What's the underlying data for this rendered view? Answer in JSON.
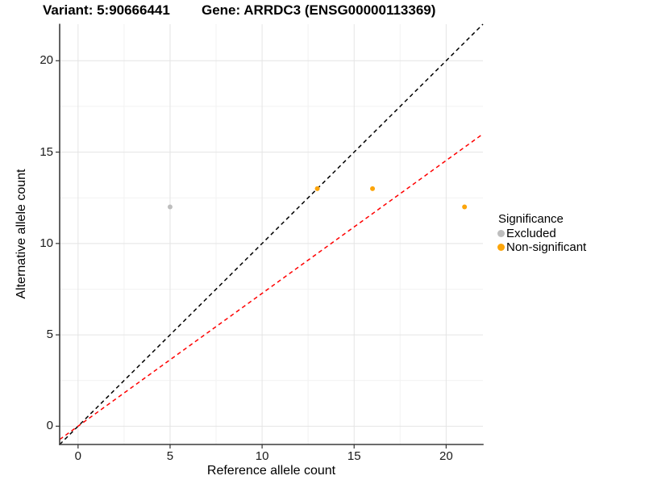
{
  "chart_data": {
    "type": "scatter",
    "titles": {
      "variant": "Variant: 5:90666441",
      "gene": "Gene: ARRDC3 (ENSG00000113369)"
    },
    "xlabel": "Reference allele count",
    "ylabel": "Alternative allele count",
    "xlim": [
      -1,
      22
    ],
    "ylim": [
      -1,
      22
    ],
    "x_ticks": [
      0,
      5,
      10,
      15,
      20
    ],
    "y_ticks": [
      0,
      5,
      10,
      15,
      20
    ],
    "x_minor_ticks": [
      2.5,
      7.5,
      12.5,
      17.5
    ],
    "y_minor_ticks": [
      2.5,
      7.5,
      12.5,
      17.5
    ],
    "grid": true,
    "legend_position": "right",
    "series": [
      {
        "name": "Excluded",
        "color": "#BEBEBE",
        "points": [
          {
            "x": 5,
            "y": 12
          }
        ]
      },
      {
        "name": "Non-significant",
        "color": "#FCA50A",
        "points": [
          {
            "x": 13,
            "y": 13
          },
          {
            "x": 16,
            "y": 13
          },
          {
            "x": 21,
            "y": 12
          }
        ]
      }
    ],
    "lines": [
      {
        "name": "identity-line",
        "slope": 1,
        "intercept": 0,
        "color": "#000000",
        "style": "dashed"
      },
      {
        "name": "expected-line",
        "slope": 0.727,
        "intercept": 0,
        "color": "#FF0000",
        "style": "dashed"
      }
    ],
    "legend": {
      "title": "Significance",
      "entries": [
        {
          "label": "Excluded",
          "color": "#BEBEBE"
        },
        {
          "label": "Non-significant",
          "color": "#FCA50A"
        }
      ]
    },
    "colors": {
      "grid_major": "#E4E4E4",
      "grid_minor": "#F2F2F2",
      "axis_line": "#3C3C3C",
      "tick_mark": "#333333"
    }
  }
}
